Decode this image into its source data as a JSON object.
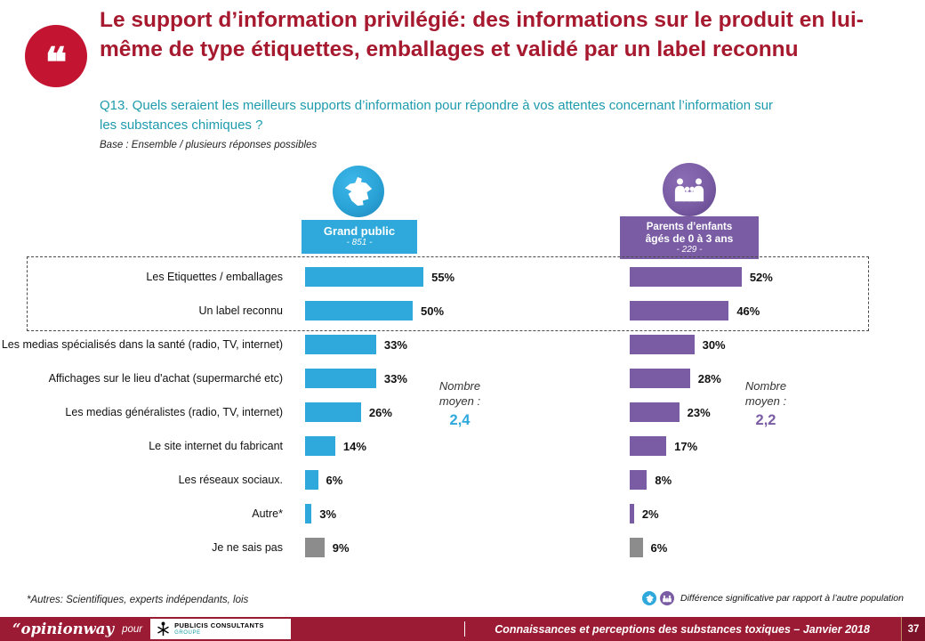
{
  "colors": {
    "title": "#A6192E",
    "teal": "#1E9BAD",
    "footer": "#9A1B33",
    "quote": "#C31432",
    "blue": "#2FA9DC",
    "purple": "#7A5CA4",
    "gray": "#8C8C8C"
  },
  "header": {
    "quote_glyph": "❝",
    "title": "Le support d’information privilégié: des informations sur le produit en lui-même de type étiquettes, emballages et validé par un label reconnu",
    "question": "Q13. Quels seraient les meilleurs supports d’information pour répondre à vos attentes concernant l’information sur les substances chimiques ?",
    "base": "Base : Ensemble / plusieurs réponses possibles"
  },
  "groups": [
    {
      "name": "Grand public",
      "base": "- 851 -",
      "color": "#2FA9DC",
      "avg_label": "Nombre\nmoyen :",
      "avg_value": "2,4"
    },
    {
      "name": "Parents d’enfants",
      "name2": "âgés de 0 à 3 ans",
      "base": "- 229 -",
      "color": "#7A5CA4",
      "avg_label": "Nombre\nmoyen :",
      "avg_value": "2,2"
    }
  ],
  "chart_data": {
    "type": "bar",
    "orientation": "horizontal",
    "unit": "%",
    "categories": [
      "Les Etiquettes / emballages",
      "Un label reconnu",
      "Les medias spécialisés dans la santé (radio, TV, internet)",
      "Affichages sur le lieu d'achat (supermarché etc)",
      "Les medias généralistes (radio, TV, internet)",
      "Le site internet du fabricant",
      "Les réseaux sociaux.",
      "Autre*",
      "Je ne sais pas"
    ],
    "series": [
      {
        "name": "Grand public - 851",
        "color": "#2FA9DC",
        "values": [
          55,
          50,
          33,
          33,
          26,
          14,
          6,
          3,
          9
        ]
      },
      {
        "name": "Parents d’enfants âgés de 0 à 3 ans - 229",
        "color": "#7A5CA4",
        "values": [
          52,
          46,
          30,
          28,
          23,
          17,
          8,
          2,
          6
        ]
      }
    ],
    "neutral_color": "#8C8C8C",
    "neutral_rows": [
      8
    ],
    "highlight_rows": [
      0,
      1
    ],
    "xlim": [
      0,
      60
    ]
  },
  "footnote": "*Autres: Scientifiques, experts indépendants, lois",
  "significance_note": "Différence significative par rapport à l’autre population",
  "footer": {
    "brand": "“opinionway",
    "pour": "pour",
    "partner": "PUBLICIS CONSULTANTS",
    "partner_sub": "GROUPE",
    "caption": "Connaissances et perceptions des substances toxiques – Janvier 2018",
    "page": "37"
  }
}
